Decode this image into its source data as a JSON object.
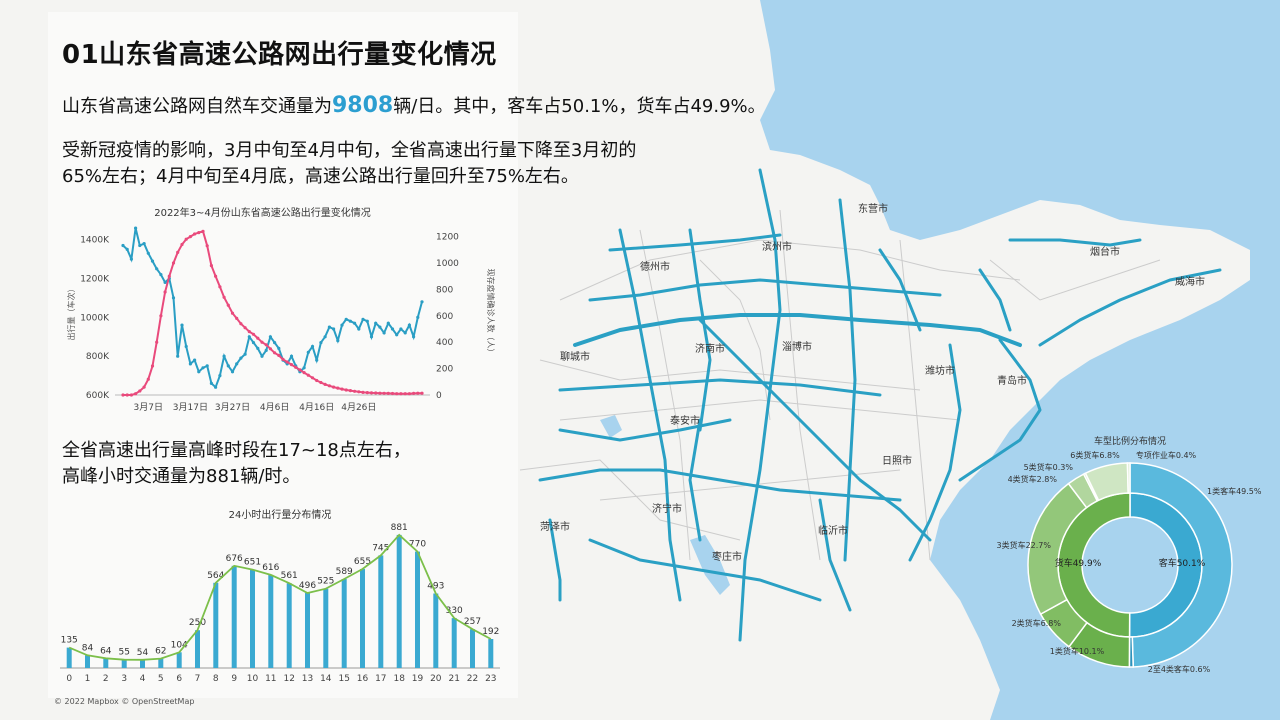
{
  "page": {
    "title": "01山东省高速公路网出行量变化情况",
    "summary_prefix": "山东省高速公路网自然车交通量为",
    "summary_value": "9808",
    "summary_suffix": "辆/日。其中，客车占50.1%，货车占49.9%。",
    "paragraph2_line1": "受新冠疫情的影响，3月中旬至4月中旬，全省高速出行量下降至3月初的",
    "paragraph2_line2": "65%左右；4月中旬至4月底，高速公路出行量回升至75%左右。",
    "paragraph3_line1": "全省高速出行量高峰时段在17~18点左右，",
    "paragraph3_line2": "高峰小时交通量为881辆/时。",
    "copyright": "© 2022 Mapbox © OpenStreetMap"
  },
  "map": {
    "cities": [
      "东营市",
      "德州市",
      "滨州市",
      "烟台市",
      "威海市",
      "聊城市",
      "济南市",
      "淄博市",
      "潍坊市",
      "青岛市",
      "泰安市",
      "日照市",
      "济宁市",
      "菏泽市",
      "临沂市",
      "枣庄市"
    ],
    "colors": {
      "water": "#a8d3ee",
      "land": "#f4f4f2",
      "road": "#2aa0c4",
      "minor": "#cfcfcf"
    }
  },
  "chart_data": [
    {
      "type": "line",
      "title": "2022年3~4月份山东省高速公路出行量变化情况",
      "xlabel": "",
      "ylabel": "出行量（车次）",
      "y2label": "现存疫情确诊人数（人）",
      "x_ticks": [
        "3月7日",
        "3月17日",
        "3月27日",
        "4月6日",
        "4月16日",
        "4月26日"
      ],
      "y_ticks": [
        "600K",
        "800K",
        "1000K",
        "1200K",
        "1400K"
      ],
      "y2_ticks": [
        "0",
        "200",
        "400",
        "600",
        "800",
        "1000",
        "1200"
      ],
      "ylim": [
        600000,
        1450000
      ],
      "y2lim": [
        0,
        1250
      ],
      "series": [
        {
          "color": "#2a9ec4",
          "axis": "left",
          "values": [
            1370000,
            1350000,
            1300000,
            1460000,
            1370000,
            1380000,
            1330000,
            1290000,
            1250000,
            1220000,
            1180000,
            1200000,
            1100000,
            800000,
            960000,
            850000,
            760000,
            780000,
            720000,
            740000,
            750000,
            660000,
            640000,
            700000,
            800000,
            750000,
            720000,
            760000,
            790000,
            810000,
            900000,
            870000,
            840000,
            800000,
            830000,
            900000,
            870000,
            840000,
            780000,
            760000,
            800000,
            750000,
            720000,
            740000,
            820000,
            850000,
            780000,
            870000,
            900000,
            950000,
            940000,
            880000,
            960000,
            990000,
            980000,
            970000,
            940000,
            990000,
            980000,
            900000,
            970000,
            950000,
            920000,
            970000,
            940000,
            910000,
            940000,
            920000,
            960000,
            900000,
            1000000,
            1080000
          ]
        },
        {
          "color": "#e94a7c",
          "axis": "right",
          "values": [
            0,
            0,
            0,
            10,
            30,
            60,
            120,
            220,
            400,
            600,
            780,
            900,
            1000,
            1080,
            1140,
            1180,
            1200,
            1220,
            1230,
            1240,
            1130,
            980,
            900,
            820,
            740,
            680,
            620,
            580,
            540,
            510,
            480,
            460,
            430,
            400,
            380,
            350,
            320,
            300,
            270,
            250,
            230,
            210,
            190,
            170,
            150,
            130,
            110,
            95,
            80,
            70,
            60,
            52,
            45,
            38,
            33,
            28,
            24,
            20,
            18,
            16,
            15,
            14,
            13,
            12,
            11,
            10,
            10,
            10,
            10,
            12,
            14,
            14
          ]
        }
      ]
    },
    {
      "type": "bar",
      "title": "24小时出行量分布情况",
      "categories": [
        "0",
        "1",
        "2",
        "3",
        "4",
        "5",
        "6",
        "7",
        "8",
        "9",
        "10",
        "11",
        "12",
        "13",
        "14",
        "15",
        "16",
        "17",
        "18",
        "19",
        "20",
        "21",
        "22",
        "23"
      ],
      "values": [
        135,
        84,
        64,
        55,
        54,
        62,
        104,
        250,
        564,
        676,
        651,
        616,
        561,
        496,
        525,
        589,
        655,
        745,
        881,
        770,
        493,
        330,
        257,
        192
      ],
      "ylim": [
        0,
        900
      ],
      "bar_color": "#3aa9d1",
      "line_color": "#7cbf4a"
    },
    {
      "type": "pie",
      "title": "车型比例分布情况",
      "inner": [
        {
          "label": "客车50.1%",
          "value": 50.1,
          "color": "#3aa9d1"
        },
        {
          "label": "货车49.9%",
          "value": 49.9,
          "color": "#6ab04c"
        }
      ],
      "outer": [
        {
          "label": "1类客车49.5%",
          "value": 49.5,
          "color": "#5ab9dd"
        },
        {
          "label": "2至4类客车0.6%",
          "value": 0.6,
          "color": "#2e93bb"
        },
        {
          "label": "1类货车10.1%",
          "value": 10.1,
          "color": "#6ab04c"
        },
        {
          "label": "2类货车6.8%",
          "value": 6.8,
          "color": "#81bd63"
        },
        {
          "label": "3类货车22.7%",
          "value": 22.7,
          "color": "#93c77a"
        },
        {
          "label": "4类货车2.8%",
          "value": 2.8,
          "color": "#b1d69e"
        },
        {
          "label": "5类货车0.3%",
          "value": 0.3,
          "color": "#c1dfb1"
        },
        {
          "label": "6类货车6.8%",
          "value": 6.8,
          "color": "#cfe6c3"
        },
        {
          "label": "专项作业车0.4%",
          "value": 0.4,
          "color": "#dcecd3"
        }
      ]
    }
  ]
}
